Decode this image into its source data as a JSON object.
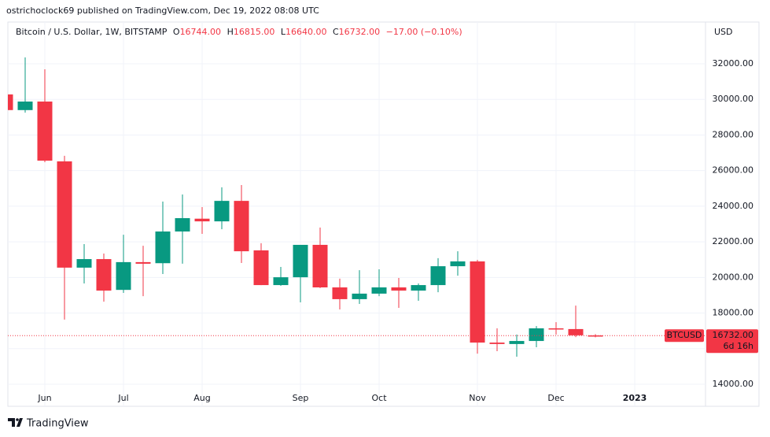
{
  "header": {
    "publisher": "ostrichoclock69 published on TradingView.com, Dec 19, 2022 08:08 UTC"
  },
  "legend": {
    "symbol": "Bitcoin / U.S. Dollar, 1W, BITSTAMP",
    "o_label": "O",
    "o": "16744.00",
    "h_label": "H",
    "h": "16815.00",
    "l_label": "L",
    "l": "16640.00",
    "c_label": "C",
    "c": "16732.00",
    "change": "−17.00 (−0.10%)"
  },
  "price_tag": {
    "symbol": "BTCUSD",
    "price": "16732.00",
    "countdown": "6d 16h"
  },
  "footer": {
    "brand": "TradingView"
  },
  "chart_data": {
    "type": "candlestick",
    "currency": "USD",
    "categories": [
      null,
      null,
      "Jun",
      null,
      null,
      null,
      "Jul",
      null,
      null,
      null,
      "Aug",
      null,
      null,
      null,
      null,
      "Sep",
      null,
      null,
      null,
      "Oct",
      null,
      null,
      null,
      null,
      "Nov",
      null,
      null,
      null,
      "Dec",
      null,
      null,
      null,
      "2023",
      null
    ],
    "open": [
      30280,
      29400,
      29880,
      26520,
      20550,
      21030,
      19300,
      20860,
      20800,
      22580,
      23300,
      23150,
      24300,
      21520,
      19570,
      20010,
      21830,
      19440,
      18780,
      19090,
      19440,
      19260,
      19570,
      20630,
      20900,
      16340,
      16260,
      16430,
      17140,
      17100,
      16744,
      null,
      null,
      null
    ],
    "high": [
      30300,
      32360,
      31690,
      26830,
      21870,
      21340,
      22400,
      21780,
      24260,
      24660,
      23950,
      25060,
      25190,
      21920,
      20590,
      21830,
      22800,
      19930,
      20410,
      20460,
      19970,
      19660,
      21080,
      21470,
      20990,
      17140,
      16790,
      17270,
      17490,
      18420,
      16815,
      null,
      null,
      null
    ],
    "low": [
      29300,
      29260,
      26470,
      17630,
      19660,
      18640,
      19130,
      18950,
      20190,
      20770,
      22450,
      22710,
      20810,
      19570,
      19530,
      18600,
      19400,
      18200,
      18510,
      18950,
      18290,
      18690,
      19170,
      20100,
      15720,
      15860,
      15550,
      16080,
      16790,
      16650,
      16640,
      null,
      null,
      null
    ],
    "close": [
      29400,
      29880,
      26560,
      20550,
      21030,
      19260,
      20860,
      20770,
      22580,
      23330,
      23150,
      24300,
      21470,
      19570,
      20010,
      21830,
      19440,
      18780,
      19090,
      19440,
      19260,
      19570,
      20630,
      20900,
      16340,
      16260,
      16430,
      17140,
      17100,
      16750,
      16732,
      null,
      null,
      null
    ],
    "up_color": "#089981",
    "down_color": "#f23645",
    "ylim": [
      12806,
      34345
    ],
    "yticks": [
      {
        "value": 14000,
        "label": "14000.00"
      },
      {
        "value": 16000,
        "label": "16000.00"
      },
      {
        "value": 18000,
        "label": "18000.00"
      },
      {
        "value": 20000,
        "label": "20000.00"
      },
      {
        "value": 22000,
        "label": "22000.00"
      },
      {
        "value": 24000,
        "label": "24000.00"
      },
      {
        "value": 26000,
        "label": "26000.00"
      },
      {
        "value": 28000,
        "label": "28000.00"
      },
      {
        "value": 30000,
        "label": "30000.00"
      },
      {
        "value": 32000,
        "label": "32000.00"
      }
    ],
    "grid": true
  }
}
